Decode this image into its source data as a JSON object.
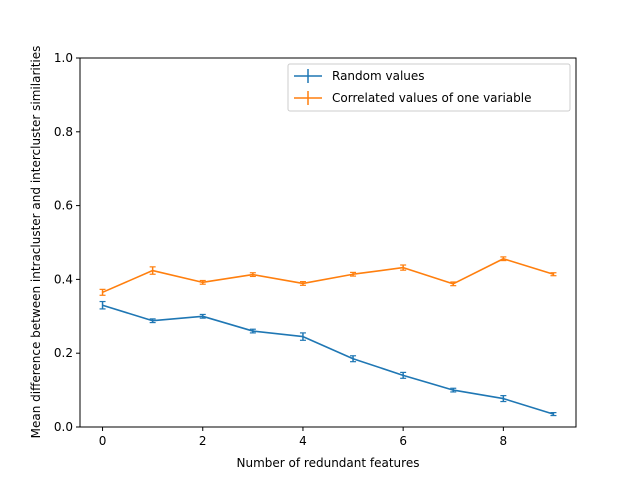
{
  "chart_data": {
    "type": "line",
    "xlabel": "Number of redundant features",
    "ylabel": "Mean difference between intracluster and intercluster similarities",
    "xlim": [
      -0.45,
      9.45
    ],
    "ylim": [
      0.0,
      1.0
    ],
    "x_ticks": [
      0,
      2,
      4,
      6,
      8
    ],
    "y_ticks": [
      0.0,
      0.2,
      0.4,
      0.6,
      0.8,
      1.0
    ],
    "x_tick_labels": [
      "0",
      "2",
      "4",
      "6",
      "8"
    ],
    "y_tick_labels": [
      "0.0",
      "0.2",
      "0.4",
      "0.6",
      "0.8",
      "1.0"
    ],
    "grid": false,
    "legend_position": "top-right",
    "x": [
      0,
      1,
      2,
      3,
      4,
      5,
      6,
      7,
      8,
      9
    ],
    "series": [
      {
        "name": "Random values",
        "color": "#1f77b4",
        "values": [
          0.33,
          0.288,
          0.3,
          0.26,
          0.245,
          0.185,
          0.14,
          0.1,
          0.077,
          0.035
        ],
        "errors": [
          0.01,
          0.005,
          0.005,
          0.005,
          0.01,
          0.008,
          0.008,
          0.005,
          0.008,
          0.003
        ]
      },
      {
        "name": "Correlated values of one variable",
        "color": "#ff7f0e",
        "values": [
          0.365,
          0.424,
          0.392,
          0.413,
          0.389,
          0.414,
          0.432,
          0.388,
          0.456,
          0.414
        ],
        "errors": [
          0.008,
          0.01,
          0.005,
          0.005,
          0.005,
          0.005,
          0.007,
          0.005,
          0.005,
          0.003
        ]
      }
    ]
  }
}
